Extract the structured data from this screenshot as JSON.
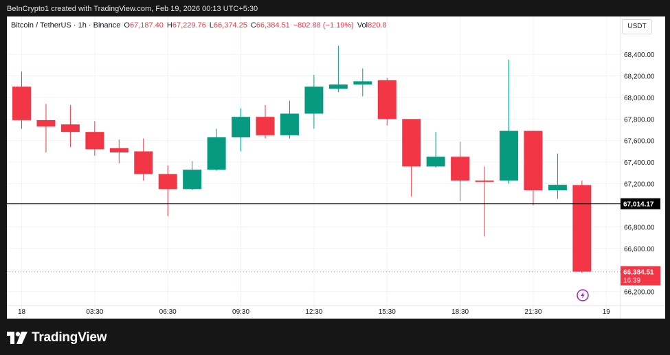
{
  "caption": "BeInCrypto1 created with TradingView.com, Feb 19, 2026 00:13 UTC+5:30",
  "legend": {
    "symbol": "Bitcoin / TetherUS · 1h · Binance",
    "open_label": "O",
    "open": "67,187.40",
    "high_label": "H",
    "high": "67,229.76",
    "low_label": "L",
    "low": "66,374.25",
    "close_label": "C",
    "close": "66,384.51",
    "change": "−802.88 (−1.19%)",
    "vol_label": "Vol",
    "vol": "820.8"
  },
  "unit_button": "USDT",
  "brand": {
    "name": "TradingView",
    "logo": "tradingview-logo-icon"
  },
  "colors": {
    "up": "#089981",
    "down": "#f23645",
    "grid": "#f0f3fa",
    "text": "#131722"
  },
  "chart_data": {
    "type": "candlestick",
    "ylim": [
      66140,
      68560
    ],
    "y_ticks": [
      "66,200.00",
      "66,400.00",
      "66,600.00",
      "66,800.00",
      "67,000.00",
      "67,200.00",
      "67,400.00",
      "67,600.00",
      "67,800.00",
      "68,000.00",
      "68,200.00",
      "68,400.00"
    ],
    "x_ticks": [
      {
        "label": "18",
        "index": 0
      },
      {
        "label": "03:30",
        "index": 3
      },
      {
        "label": "06:30",
        "index": 6
      },
      {
        "label": "09:30",
        "index": 9
      },
      {
        "label": "12:30",
        "index": 12
      },
      {
        "label": "15:30",
        "index": 15
      },
      {
        "label": "18:30",
        "index": 18
      },
      {
        "label": "21:30",
        "index": 21
      },
      {
        "label": "19",
        "index": 24
      }
    ],
    "candles": [
      {
        "o": 68100,
        "h": 68240,
        "l": 67710,
        "c": 67790
      },
      {
        "o": 67790,
        "h": 67940,
        "l": 67490,
        "c": 67730
      },
      {
        "o": 67750,
        "h": 67930,
        "l": 67540,
        "c": 67680
      },
      {
        "o": 67680,
        "h": 67780,
        "l": 67460,
        "c": 67520
      },
      {
        "o": 67530,
        "h": 67610,
        "l": 67390,
        "c": 67490
      },
      {
        "o": 67500,
        "h": 67620,
        "l": 67230,
        "c": 67290
      },
      {
        "o": 67290,
        "h": 67370,
        "l": 66900,
        "c": 67150
      },
      {
        "o": 67150,
        "h": 67410,
        "l": 67140,
        "c": 67330
      },
      {
        "o": 67330,
        "h": 67710,
        "l": 67320,
        "c": 67630
      },
      {
        "o": 67630,
        "h": 67900,
        "l": 67500,
        "c": 67820
      },
      {
        "o": 67820,
        "h": 67930,
        "l": 67620,
        "c": 67650
      },
      {
        "o": 67650,
        "h": 67970,
        "l": 67620,
        "c": 67850
      },
      {
        "o": 67850,
        "h": 68210,
        "l": 67710,
        "c": 68100
      },
      {
        "o": 68080,
        "h": 68480,
        "l": 68050,
        "c": 68120
      },
      {
        "o": 68120,
        "h": 68270,
        "l": 68010,
        "c": 68150
      },
      {
        "o": 68160,
        "h": 68180,
        "l": 67740,
        "c": 67800
      },
      {
        "o": 67800,
        "h": 67800,
        "l": 67080,
        "c": 67360
      },
      {
        "o": 67360,
        "h": 67680,
        "l": 67350,
        "c": 67450
      },
      {
        "o": 67450,
        "h": 67590,
        "l": 67040,
        "c": 67230
      },
      {
        "o": 67230,
        "h": 67360,
        "l": 66710,
        "c": 67220
      },
      {
        "o": 67230,
        "h": 68350,
        "l": 67200,
        "c": 67690
      },
      {
        "o": 67690,
        "h": 67690,
        "l": 67000,
        "c": 67140
      },
      {
        "o": 67140,
        "h": 67480,
        "l": 67060,
        "c": 67190
      },
      {
        "o": 67187.4,
        "h": 67229.76,
        "l": 66374.25,
        "c": 66384.51
      }
    ],
    "horizontal_line": {
      "value": 67014.17,
      "label": "67,014.17"
    },
    "last_price": {
      "value": 66384.51,
      "label": "66,384.51",
      "countdown": "16:39"
    },
    "ylabel": "",
    "xlabel": "",
    "title": ""
  }
}
